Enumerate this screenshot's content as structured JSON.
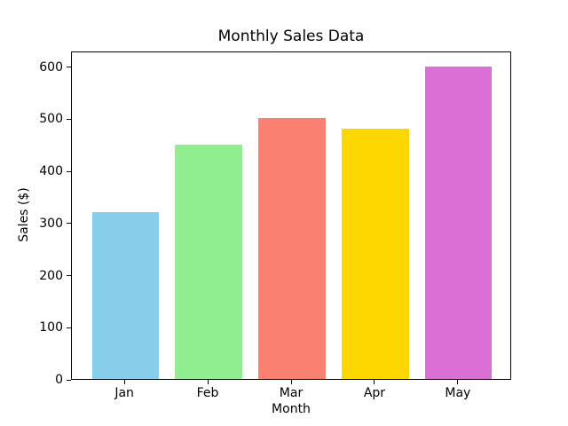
{
  "chart_data": {
    "type": "bar",
    "title": "Monthly Sales Data",
    "xlabel": "Month",
    "ylabel": "Sales ($)",
    "categories": [
      "Jan",
      "Feb",
      "Mar",
      "Apr",
      "May"
    ],
    "values": [
      320,
      450,
      500,
      480,
      600
    ],
    "bar_colors": [
      "#87CEEB",
      "#90EE90",
      "#FA8072",
      "#FFD700",
      "#DA70D6"
    ],
    "ylim": [
      0,
      630
    ],
    "yticks": [
      0,
      100,
      200,
      300,
      400,
      500,
      600
    ],
    "grid": "off",
    "legend": "none",
    "background_color": "#ffffff",
    "spine_color": "#000000"
  }
}
